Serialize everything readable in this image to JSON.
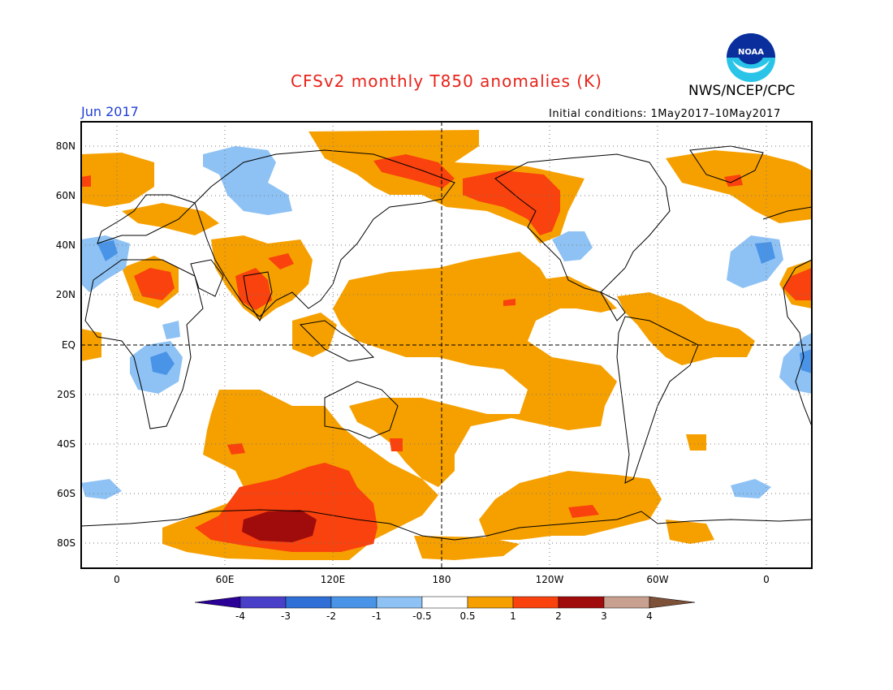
{
  "header": {
    "title": "CFSv2 monthly T850 anomalies (K)",
    "agency": "NWS/NCEP/CPC",
    "month": "Jun 2017",
    "initial_conditions": "Initial conditions: 1May2017–10May2017"
  },
  "colors": {
    "title": "#e8231a",
    "month": "#1f3fd6",
    "frame": "#000000"
  },
  "logo": {
    "icon": "noaa-logo",
    "text": "NOAA"
  },
  "map": {
    "lat_labels": [
      "80N",
      "60N",
      "40N",
      "20N",
      "EQ",
      "20S",
      "40S",
      "60S",
      "80S"
    ],
    "lon_labels": [
      "0",
      "60E",
      "120E",
      "180",
      "120W",
      "60W",
      "0"
    ],
    "lat_range": [
      -90,
      90
    ],
    "lon_range": [
      -20,
      380
    ],
    "grid": "dotted",
    "highlighted_lines": "equator and dateline dashed"
  },
  "legend": {
    "labels": [
      "-4",
      "-3",
      "-2",
      "-1",
      "-0.5",
      "0.5",
      "1",
      "2",
      "3",
      "4"
    ],
    "colors": [
      "#2a0096",
      "#4a3fc9",
      "#2f6fd6",
      "#4a94e8",
      "#8ec2f4",
      "#ffffff",
      "#f6a000",
      "#f9420d",
      "#a00c0c",
      "#c8a08f",
      "#7d5038"
    ]
  }
}
